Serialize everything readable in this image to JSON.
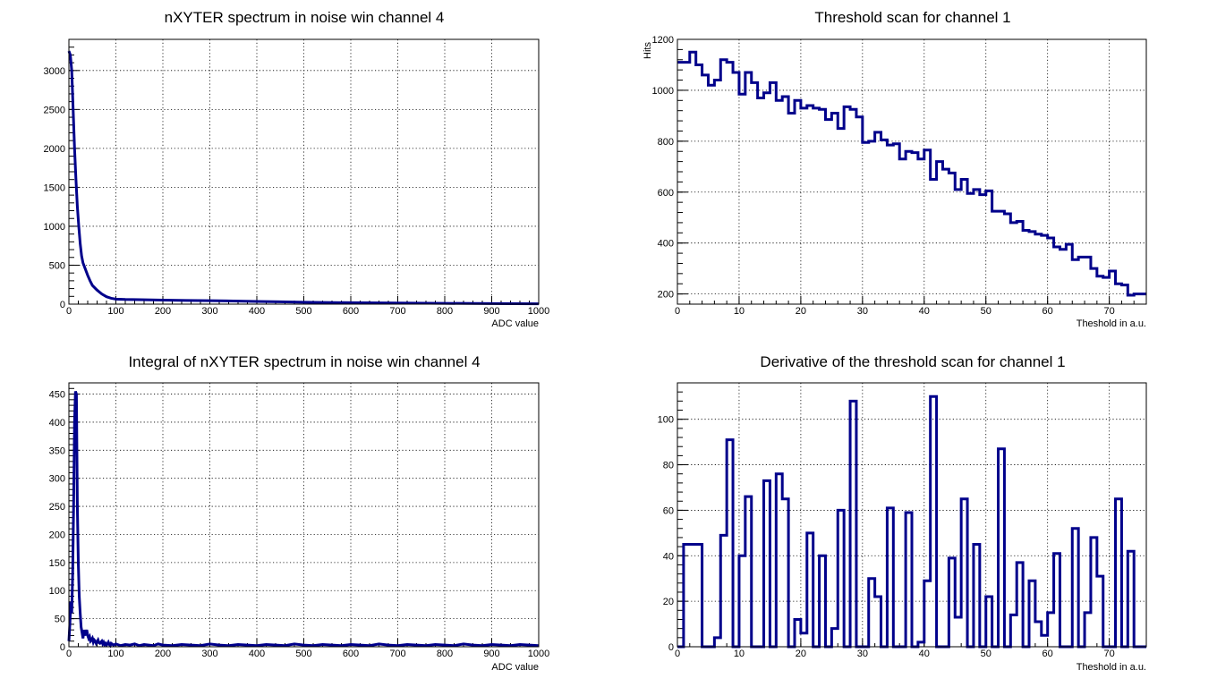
{
  "chart_data": [
    {
      "type": "line",
      "title": "nXYTER spectrum in noise win channel 4",
      "xlabel": "ADC value",
      "ylabel": "",
      "xlim": [
        0,
        1000
      ],
      "ylim": [
        0,
        3400
      ],
      "grid": true,
      "color": "#00008b",
      "xticks": [
        "0",
        "100",
        "200",
        "300",
        "400",
        "500",
        "600",
        "700",
        "800",
        "900",
        "1000"
      ],
      "yticks": [
        "0",
        "500",
        "1000",
        "1500",
        "2000",
        "2500",
        "3000"
      ],
      "series": [
        {
          "x": [
            0,
            3,
            6,
            9,
            12,
            15,
            18,
            21,
            24,
            27,
            30,
            35,
            40,
            45,
            50,
            60,
            70,
            80,
            90,
            100,
            120,
            150,
            200,
            250,
            300,
            350,
            400,
            450,
            500,
            600,
            700,
            800,
            900,
            1000
          ],
          "values": [
            3250,
            3200,
            3000,
            2500,
            2000,
            1600,
            1250,
            1000,
            780,
            620,
            530,
            450,
            370,
            300,
            240,
            180,
            130,
            95,
            75,
            65,
            60,
            58,
            52,
            48,
            45,
            40,
            35,
            30,
            25,
            18,
            14,
            10,
            7,
            5
          ]
        }
      ]
    },
    {
      "type": "line",
      "title": "Threshold scan for channel 1",
      "xlabel": "Theshold in a.u.",
      "ylabel": "Hits",
      "xlim": [
        0,
        76
      ],
      "ylim": [
        160,
        1200
      ],
      "grid": true,
      "color": "#00008b",
      "xticks": [
        "0",
        "10",
        "20",
        "30",
        "40",
        "50",
        "60",
        "70"
      ],
      "yticks": [
        "200",
        "400",
        "600",
        "800",
        "1000",
        "1200"
      ],
      "series": [
        {
          "values": [
            1110,
            1110,
            1150,
            1100,
            1060,
            1020,
            1040,
            1120,
            1110,
            1070,
            985,
            1070,
            1030,
            970,
            990,
            1030,
            960,
            975,
            910,
            960,
            930,
            940,
            930,
            925,
            885,
            910,
            850,
            935,
            925,
            895,
            795,
            800,
            835,
            805,
            785,
            790,
            730,
            760,
            755,
            730,
            765,
            650,
            720,
            690,
            675,
            610,
            650,
            595,
            610,
            590,
            605,
            525,
            525,
            515,
            480,
            485,
            450,
            445,
            435,
            430,
            420,
            385,
            375,
            395,
            335,
            345,
            345,
            300,
            270,
            265,
            290,
            240,
            235,
            195,
            200,
            200
          ]
        }
      ]
    },
    {
      "type": "line",
      "title": "Integral of nXYTER spectrum in noise win channel 4",
      "xlabel": "ADC value",
      "ylabel": "",
      "xlim": [
        0,
        1000
      ],
      "ylim": [
        0,
        470
      ],
      "grid": true,
      "color": "#00008b",
      "xticks": [
        "0",
        "100",
        "200",
        "300",
        "400",
        "500",
        "600",
        "700",
        "800",
        "900",
        "1000"
      ],
      "yticks": [
        "0",
        "50",
        "100",
        "150",
        "200",
        "250",
        "300",
        "350",
        "400",
        "450"
      ],
      "series": [
        {
          "x": [
            0,
            2,
            4,
            6,
            8,
            10,
            12,
            14,
            16,
            18,
            20,
            22,
            24,
            26,
            28,
            30,
            32,
            34,
            36,
            38,
            40,
            42,
            44,
            46,
            48,
            50,
            52,
            54,
            56,
            58,
            60,
            62,
            64,
            66,
            68,
            70,
            72,
            74,
            76,
            78,
            80,
            82,
            84,
            86,
            88,
            90,
            95,
            100,
            110,
            120,
            130,
            140,
            150,
            160,
            170,
            180,
            190,
            200,
            220,
            240,
            260,
            280,
            300,
            320,
            340,
            360,
            380,
            400,
            420,
            440,
            460,
            480,
            500,
            520,
            540,
            560,
            580,
            600,
            620,
            640,
            660,
            680,
            700,
            720,
            740,
            760,
            780,
            800,
            820,
            840,
            860,
            880,
            900,
            920,
            940,
            960,
            980,
            1000
          ],
          "values": [
            10,
            40,
            80,
            60,
            130,
            250,
            400,
            455,
            450,
            250,
            150,
            90,
            60,
            35,
            25,
            15,
            30,
            20,
            25,
            30,
            20,
            15,
            18,
            10,
            12,
            15,
            8,
            12,
            10,
            6,
            9,
            12,
            7,
            6,
            8,
            10,
            5,
            8,
            4,
            6,
            3,
            5,
            8,
            4,
            2,
            6,
            3,
            5,
            2,
            4,
            3,
            5,
            2,
            4,
            3,
            2,
            5,
            3,
            2,
            4,
            3,
            2,
            5,
            3,
            2,
            4,
            3,
            2,
            4,
            3,
            2,
            5,
            3,
            2,
            4,
            3,
            2,
            4,
            3,
            2,
            5,
            3,
            2,
            4,
            3,
            2,
            4,
            3,
            2,
            5,
            3,
            2,
            4,
            3,
            2,
            4,
            3,
            2
          ]
        }
      ]
    },
    {
      "type": "line",
      "title": "Derivative of the threshold scan for channel 1",
      "xlabel": "Theshold in a.u.",
      "ylabel": "",
      "xlim": [
        0,
        76
      ],
      "ylim": [
        0,
        116
      ],
      "grid": true,
      "color": "#00008b",
      "xticks": [
        "0",
        "10",
        "20",
        "30",
        "40",
        "50",
        "60",
        "70"
      ],
      "yticks": [
        "0",
        "20",
        "40",
        "60",
        "80",
        "100"
      ],
      "series": [
        {
          "values": [
            0,
            45,
            45,
            45,
            0,
            0,
            4,
            49,
            91,
            0,
            40,
            66,
            0,
            0,
            73,
            0,
            76,
            65,
            0,
            12,
            6,
            50,
            0,
            40,
            0,
            8,
            60,
            0,
            108,
            0,
            0,
            30,
            22,
            0,
            61,
            0,
            0,
            59,
            0,
            2,
            29,
            110,
            0,
            0,
            39,
            13,
            65,
            0,
            45,
            0,
            22,
            0,
            87,
            0,
            14,
            37,
            0,
            29,
            11,
            5,
            15,
            41,
            0,
            0,
            52,
            0,
            15,
            48,
            31,
            0,
            0,
            65,
            0,
            42,
            0,
            0
          ]
        }
      ]
    }
  ]
}
